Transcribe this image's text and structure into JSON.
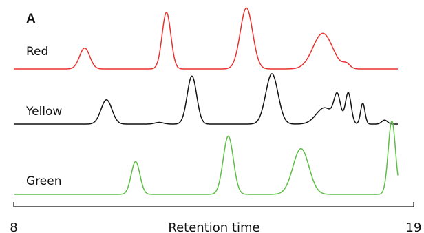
{
  "chart_data": {
    "type": "line",
    "panel_label": "A",
    "xlabel": "Retention time",
    "ylabel": "",
    "xlim": [
      8,
      19
    ],
    "x_ticks": [
      "8",
      "19"
    ],
    "grid": false,
    "legend": "none",
    "series": [
      {
        "name": "Red",
        "color": "#e8322e",
        "peaks": [
          {
            "x": 9.95,
            "height": 0.37,
            "width": 0.14
          },
          {
            "x": 12.2,
            "height": 1.0,
            "width": 0.12
          },
          {
            "x": 14.4,
            "height": 1.08,
            "width": 0.17
          },
          {
            "x": 16.5,
            "height": 0.63,
            "width": 0.27
          },
          {
            "x": 17.15,
            "height": 0.08,
            "width": 0.1
          }
        ]
      },
      {
        "name": "Yellow",
        "color": "#111111",
        "peaks": [
          {
            "x": 10.55,
            "height": 0.43,
            "width": 0.15
          },
          {
            "x": 12.0,
            "height": 0.03,
            "width": 0.12
          },
          {
            "x": 12.9,
            "height": 0.85,
            "width": 0.13
          },
          {
            "x": 15.1,
            "height": 0.89,
            "width": 0.17
          },
          {
            "x": 16.55,
            "height": 0.29,
            "width": 0.23
          },
          {
            "x": 16.9,
            "height": 0.46,
            "width": 0.09
          },
          {
            "x": 17.2,
            "height": 0.55,
            "width": 0.08
          },
          {
            "x": 17.6,
            "height": 0.37,
            "width": 0.06
          },
          {
            "x": 18.2,
            "height": 0.07,
            "width": 0.08
          }
        ]
      },
      {
        "name": "Green",
        "color": "#5cbe45",
        "peaks": [
          {
            "x": 11.35,
            "height": 0.58,
            "width": 0.12
          },
          {
            "x": 13.9,
            "height": 1.03,
            "width": 0.14
          },
          {
            "x": 15.9,
            "height": 0.81,
            "width": 0.22
          },
          {
            "x": 18.4,
            "height": 1.3,
            "width": 0.1
          }
        ]
      }
    ]
  }
}
